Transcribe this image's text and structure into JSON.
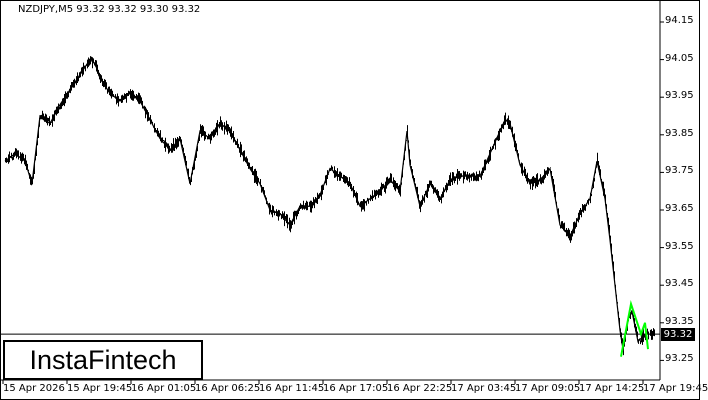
{
  "chart_data": {
    "type": "line",
    "title": "NZDJPY,M5  93.32 93.32 93.30 93.32",
    "symbol": "NZDJPY",
    "timeframe": "M5",
    "ohlc_last": {
      "open": 93.32,
      "high": 93.32,
      "low": 93.3,
      "close": 93.32
    },
    "current_price": "93.32",
    "ylim": [
      93.2,
      94.2
    ],
    "y_ticks": [
      "94.15",
      "94.05",
      "93.95",
      "93.85",
      "93.75",
      "93.65",
      "93.55",
      "93.45",
      "93.35",
      "93.25"
    ],
    "x_ticks": [
      "15 Apr 2026",
      "15 Apr 19:45",
      "16 Apr 01:05",
      "16 Apr 06:25",
      "16 Apr 11:45",
      "16 Apr 17:05",
      "16 Apr 22:25",
      "17 Apr 03:45",
      "17 Apr 09:05",
      "17 Apr 14:25",
      "17 Apr 19:45"
    ],
    "grid": false,
    "colors": {
      "price": "#000000",
      "pattern": "#00ff00",
      "background": "#ffffff"
    },
    "series": [
      {
        "points": [
          [
            "15 Apr 14:35",
            93.78
          ],
          [
            "15 Apr 15:25",
            93.8
          ],
          [
            "15 Apr 16:15",
            93.78
          ],
          [
            "15 Apr 16:50",
            93.72
          ],
          [
            "15 Apr 17:30",
            93.9
          ],
          [
            "15 Apr 18:20",
            93.88
          ],
          [
            "15 Apr 19:10",
            93.93
          ],
          [
            "15 Apr 20:00",
            93.97
          ],
          [
            "15 Apr 20:50",
            94.01
          ],
          [
            "15 Apr 21:40",
            94.05
          ],
          [
            "15 Apr 22:05",
            94.04
          ],
          [
            "15 Apr 22:30",
            94.0
          ],
          [
            "15 Apr 23:20",
            93.96
          ],
          [
            "16 Apr 00:10",
            93.94
          ],
          [
            "16 Apr 01:00",
            93.96
          ],
          [
            "16 Apr 01:50",
            93.94
          ],
          [
            "16 Apr 02:40",
            93.89
          ],
          [
            "16 Apr 03:30",
            93.84
          ],
          [
            "16 Apr 04:20",
            93.81
          ],
          [
            "16 Apr 05:10",
            93.84
          ],
          [
            "16 Apr 06:00",
            93.72
          ],
          [
            "16 Apr 06:50",
            93.86
          ],
          [
            "16 Apr 07:40",
            93.84
          ],
          [
            "16 Apr 08:30",
            93.88
          ],
          [
            "16 Apr 09:20",
            93.86
          ],
          [
            "16 Apr 10:10",
            93.81
          ],
          [
            "16 Apr 11:00",
            93.76
          ],
          [
            "16 Apr 11:50",
            93.72
          ],
          [
            "16 Apr 12:40",
            93.65
          ],
          [
            "16 Apr 13:30",
            93.64
          ],
          [
            "16 Apr 14:20",
            93.61
          ],
          [
            "16 Apr 15:10",
            93.66
          ],
          [
            "16 Apr 16:00",
            93.66
          ],
          [
            "16 Apr 16:50",
            93.69
          ],
          [
            "16 Apr 17:40",
            93.76
          ],
          [
            "16 Apr 18:30",
            93.74
          ],
          [
            "16 Apr 19:20",
            93.72
          ],
          [
            "16 Apr 20:10",
            93.66
          ],
          [
            "16 Apr 21:00",
            93.68
          ],
          [
            "16 Apr 21:50",
            93.7
          ],
          [
            "16 Apr 22:40",
            93.73
          ],
          [
            "16 Apr 23:30",
            93.7
          ],
          [
            "17 Apr 00:05",
            93.86
          ],
          [
            "17 Apr 00:20",
            93.77
          ],
          [
            "17 Apr 01:10",
            93.66
          ],
          [
            "17 Apr 02:00",
            93.72
          ],
          [
            "17 Apr 02:50",
            93.68
          ],
          [
            "17 Apr 03:40",
            93.73
          ],
          [
            "17 Apr 04:30",
            93.74
          ],
          [
            "17 Apr 05:20",
            93.74
          ],
          [
            "17 Apr 06:10",
            93.74
          ],
          [
            "17 Apr 07:00",
            93.8
          ],
          [
            "17 Apr 07:50",
            93.86
          ],
          [
            "17 Apr 08:15",
            93.89
          ],
          [
            "17 Apr 08:40",
            93.88
          ],
          [
            "17 Apr 09:30",
            93.77
          ],
          [
            "17 Apr 10:20",
            93.72
          ],
          [
            "17 Apr 11:10",
            93.73
          ],
          [
            "17 Apr 12:00",
            93.76
          ],
          [
            "17 Apr 12:50",
            93.61
          ],
          [
            "17 Apr 13:40",
            93.58
          ],
          [
            "17 Apr 14:30",
            93.64
          ],
          [
            "17 Apr 15:20",
            93.68
          ],
          [
            "17 Apr 15:55",
            93.78
          ],
          [
            "17 Apr 16:35",
            93.68
          ],
          [
            "17 Apr 17:00",
            93.57
          ],
          [
            "17 Apr 17:25",
            93.45
          ],
          [
            "17 Apr 17:50",
            93.33
          ],
          [
            "17 Apr 18:05",
            93.28
          ],
          [
            "17 Apr 18:30",
            93.36
          ],
          [
            "17 Apr 18:50",
            93.38
          ],
          [
            "17 Apr 19:20",
            93.3
          ],
          [
            "17 Apr 19:55",
            93.32
          ],
          [
            "17 Apr 20:45",
            93.32
          ]
        ]
      }
    ],
    "pattern": {
      "points": [
        [
          "17 Apr 17:55",
          93.26
        ],
        [
          "17 Apr 18:45",
          93.4
        ],
        [
          "17 Apr 19:35",
          93.32
        ],
        [
          "17 Apr 19:55",
          93.35
        ],
        [
          "17 Apr 20:10",
          93.28
        ]
      ]
    }
  },
  "logo": "InstaFintech"
}
